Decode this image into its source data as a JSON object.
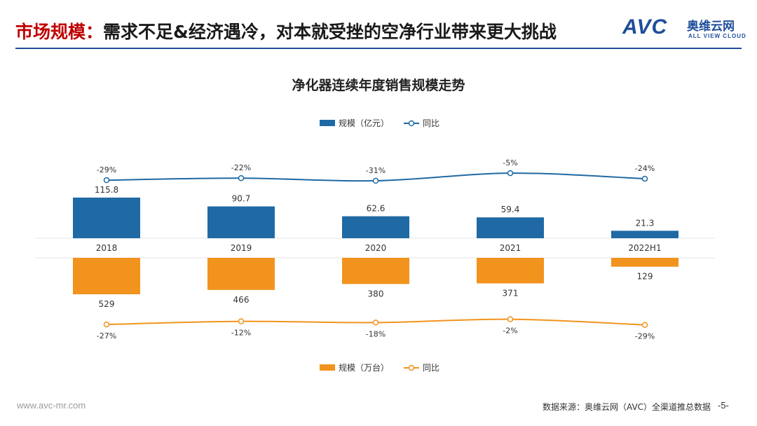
{
  "header": {
    "title_key": "市场规模：",
    "title_rest": "需求不足&经济遇冷，对本就受挫的空净行业带来更大挑战"
  },
  "logo": {
    "mark": "AVC",
    "cn": "奥维云网",
    "en": "ALL VIEW CLOUD"
  },
  "footer": {
    "url": "www.avc-mr.com",
    "source": "数据来源：奥维云网（AVC）全渠道推总数据",
    "page": "-5-"
  },
  "colors": {
    "accent_blue": "#1f6aa5",
    "accent_orange": "#f2931e",
    "title_red": "#c00000",
    "rule_blue": "#1f4e9a"
  },
  "chart_data": {
    "type": "bar",
    "title": "净化器连续年度销售规模走势",
    "categories": [
      "2018",
      "2019",
      "2020",
      "2021",
      "2022H1"
    ],
    "top": {
      "bars": {
        "name": "规模（亿元）",
        "values": [
          115.8,
          90.7,
          62.6,
          59.4,
          21.3
        ],
        "labels": [
          "115.8",
          "90.7",
          "62.6",
          "59.4",
          "21.3"
        ],
        "color": "#1f6aa5"
      },
      "line": {
        "name": "同比",
        "values": [
          -29,
          -22,
          -31,
          -5,
          -24
        ],
        "labels": [
          "-29%",
          "-22%",
          "-31%",
          "-5%",
          "-24%"
        ],
        "color": "#1f6aa5"
      },
      "legend_position": "top-center"
    },
    "bottom": {
      "bars": {
        "name": "规模（万台）",
        "values": [
          529,
          466,
          380,
          371,
          129
        ],
        "labels": [
          "529",
          "466",
          "380",
          "371",
          "129"
        ],
        "color": "#f2931e"
      },
      "line": {
        "name": "同比",
        "values": [
          -27,
          -12,
          -18,
          -2,
          -29
        ],
        "labels": [
          "-27%",
          "-12%",
          "-18%",
          "-2%",
          "-29%"
        ],
        "color": "#f2931e"
      },
      "legend_position": "bottom-center"
    },
    "grid": false
  }
}
